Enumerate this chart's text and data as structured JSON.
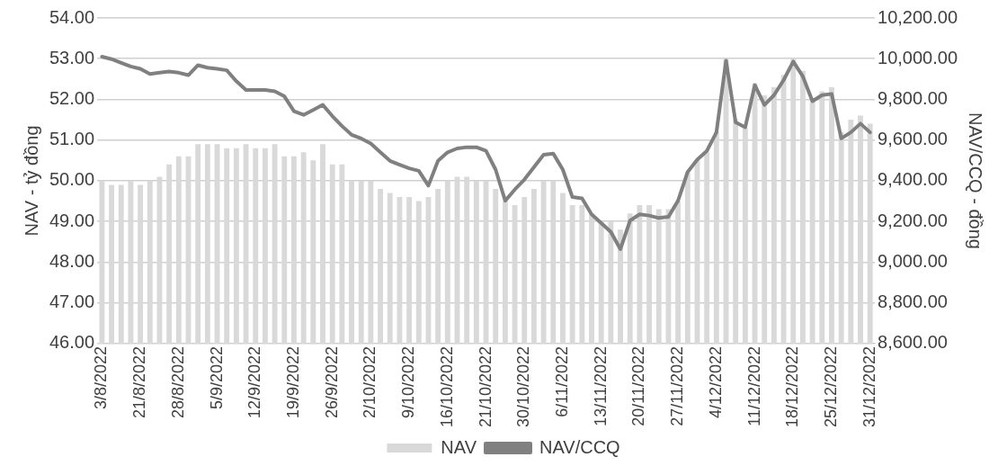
{
  "chart_data": {
    "type": "bar",
    "ylabel": "NAV - tỷ đồng",
    "y2label": "NAV/CCQ - đồng",
    "categories": [
      "3/8/2022",
      null,
      null,
      null,
      "21/8/2022",
      null,
      null,
      null,
      "28/8/2022",
      null,
      null,
      null,
      "5/9/2022",
      null,
      null,
      null,
      "12/9/2022",
      null,
      null,
      null,
      "19/9/2022",
      null,
      null,
      null,
      "26/9/2022",
      null,
      null,
      null,
      "2/10/2022",
      null,
      null,
      null,
      "9/10/2022",
      null,
      null,
      null,
      "16/10/2022",
      null,
      null,
      null,
      "21/10/2022",
      null,
      null,
      null,
      "30/10/2022",
      null,
      null,
      null,
      "6/11/2022",
      null,
      null,
      null,
      "13/11/2022",
      null,
      null,
      null,
      "20/11/2022",
      null,
      null,
      null,
      "27/11/2022",
      null,
      null,
      null,
      "4/12/2022",
      null,
      null,
      null,
      "11/12/2022",
      null,
      null,
      null,
      "18/12/2022",
      null,
      null,
      null,
      "25/12/2022",
      null,
      null,
      null,
      "31/12/2022"
    ],
    "series": [
      {
        "name": "NAV",
        "color": "#d9d9d9",
        "values": [
          50.0,
          49.9,
          49.9,
          50.0,
          49.9,
          50.0,
          50.1,
          50.4,
          50.6,
          50.6,
          50.9,
          50.9,
          50.9,
          50.8,
          50.8,
          50.9,
          50.8,
          50.8,
          50.9,
          50.6,
          50.6,
          50.7,
          50.5,
          50.9,
          50.4,
          50.4,
          50.0,
          50.0,
          50.0,
          49.8,
          49.7,
          49.6,
          49.6,
          49.5,
          49.6,
          49.8,
          50.0,
          50.1,
          50.1,
          50.0,
          50.0,
          49.8,
          49.5,
          49.4,
          49.6,
          49.8,
          50.0,
          50.0,
          49.7,
          49.4,
          49.4,
          49.2,
          49.0,
          49.0,
          48.8,
          49.2,
          49.4,
          49.4,
          49.3,
          49.3,
          49.5,
          50.2,
          50.5,
          50.7,
          51.2,
          53.0,
          51.5,
          51.3,
          52.4,
          52.1,
          52.3,
          52.6,
          53.0,
          52.7,
          52.0,
          52.2,
          52.3,
          51.2,
          51.5,
          51.6,
          51.4
        ]
      },
      {
        "name": "NAV/CCQ",
        "type": "line",
        "axis": "y2",
        "color": "#808080",
        "values": [
          10010,
          9998,
          9980,
          9962,
          9950,
          9925,
          9931,
          9937,
          9931,
          9919,
          9968,
          9956,
          9950,
          9943,
          9889,
          9846,
          9846,
          9846,
          9840,
          9815,
          9742,
          9724,
          9748,
          9773,
          9718,
          9669,
          9626,
          9608,
          9583,
          9540,
          9498,
          9479,
          9461,
          9449,
          9376,
          9498,
          9540,
          9559,
          9565,
          9565,
          9547,
          9455,
          9302,
          9357,
          9406,
          9467,
          9528,
          9534,
          9455,
          9320,
          9314,
          9235,
          9192,
          9149,
          9064,
          9204,
          9235,
          9229,
          9217,
          9223,
          9302,
          9443,
          9504,
          9547,
          9638,
          9990,
          9687,
          9663,
          9870,
          9773,
          9821,
          9895,
          9986,
          9913,
          9791,
          9821,
          9827,
          9608,
          9638,
          9681,
          9638
        ]
      }
    ],
    "ylim": [
      46,
      54
    ],
    "yticks": [
      {
        "value": 46,
        "label": "46.00"
      },
      {
        "value": 47,
        "label": "47.00"
      },
      {
        "value": 48,
        "label": "48.00"
      },
      {
        "value": 49,
        "label": "49.00"
      },
      {
        "value": 50,
        "label": "50.00"
      },
      {
        "value": 51,
        "label": "51.00"
      },
      {
        "value": 52,
        "label": "52.00"
      },
      {
        "value": 53,
        "label": "53.00"
      },
      {
        "value": 54,
        "label": "54.00"
      }
    ],
    "y2lim": [
      8600,
      10200
    ],
    "y2ticks": [
      {
        "value": 8600,
        "label": "8,600.00"
      },
      {
        "value": 8800,
        "label": "8,800.00"
      },
      {
        "value": 9000,
        "label": "9,000.00"
      },
      {
        "value": 9200,
        "label": "9,200.00"
      },
      {
        "value": 9400,
        "label": "9,400.00"
      },
      {
        "value": 9600,
        "label": "9,600.00"
      },
      {
        "value": 9800,
        "label": "9,800.00"
      },
      {
        "value": 10000,
        "label": "10,000.00"
      },
      {
        "value": 10200,
        "label": "10,200.00"
      }
    ],
    "grid": "y",
    "legend": "bottom"
  }
}
